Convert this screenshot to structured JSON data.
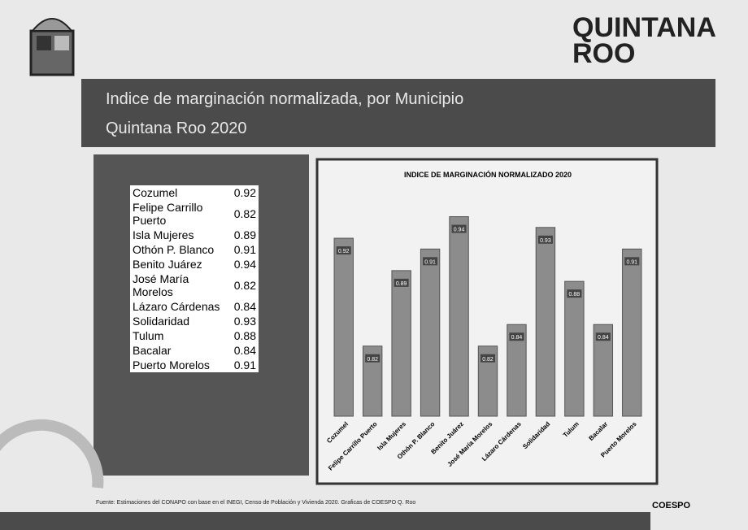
{
  "header": {
    "title": "Indice de marginación normalizada, por Municipio",
    "subtitle": "Quintana Roo 2020",
    "logo": "QUINTANA ROO"
  },
  "table": {
    "rows": [
      [
        "Cozumel",
        0.92
      ],
      [
        "Felipe Carrillo Puerto",
        0.82
      ],
      [
        "Isla Mujeres",
        0.89
      ],
      [
        "Othón P. Blanco",
        0.91
      ],
      [
        "Benito Juárez",
        0.94
      ],
      [
        "José María Morelos",
        0.82
      ],
      [
        "Lázaro Cárdenas",
        0.84
      ],
      [
        "Solidaridad",
        0.93
      ],
      [
        "Tulum",
        0.88
      ],
      [
        "Bacalar",
        0.84
      ],
      [
        "Puerto Morelos",
        0.91
      ]
    ]
  },
  "chart_data": {
    "type": "bar",
    "title": "INDICE DE MARGINACIÓN NORMALIZADO 2020",
    "categories": [
      "Cozumel",
      "Felipe Carrillo Puerto",
      "Isla Mujeres",
      "Othón P. Blanco",
      "Benito Juárez",
      "José María Morelos",
      "Lázaro Cárdenas",
      "Solidaridad",
      "Tulum",
      "Bacalar",
      "Puerto Morelos"
    ],
    "values": [
      0.92,
      0.82,
      0.89,
      0.91,
      0.94,
      0.82,
      0.84,
      0.93,
      0.88,
      0.84,
      0.91
    ],
    "color": "#8c8c8c",
    "ylim": [
      0.755,
      0.96
    ]
  },
  "footer": {
    "source": "Fuente: Estimaciones del CONAPO con base en el INEGI, Censo de Población y Vivienda 2020. Graficas de COESPO Q. Roo",
    "logo": "COESPO"
  }
}
